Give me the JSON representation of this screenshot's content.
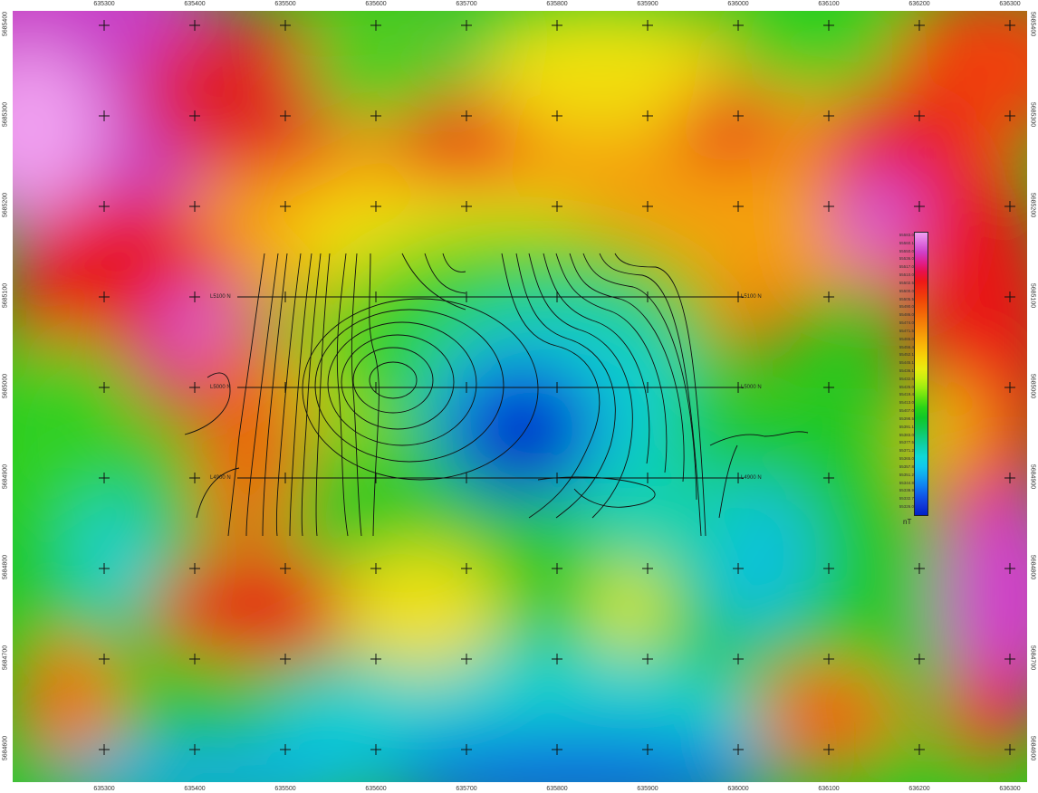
{
  "map": {
    "x_ticks": [
      "635300",
      "635400",
      "635500",
      "635600",
      "635700",
      "635800",
      "635900",
      "636000",
      "636100",
      "636200",
      "636300"
    ],
    "y_ticks": [
      "5685400",
      "5685300",
      "5685200",
      "5685100",
      "5685000",
      "5684900",
      "5684800",
      "5684700",
      "5684600"
    ],
    "survey_lines": [
      {
        "left_label": "L5100 N",
        "right_label": "L5100 N"
      },
      {
        "left_label": "L5000 N",
        "right_label": "L5000 N"
      },
      {
        "left_label": "L4900 N",
        "right_label": "L4900 N"
      }
    ],
    "legend": {
      "unit": "nT",
      "values": [
        "55583.0",
        "55560.1",
        "55550.0",
        "55536.0",
        "55517.0",
        "55510.0",
        "55502.5",
        "55500.0",
        "55505.5",
        "55490.0",
        "55486.0",
        "55474.0",
        "55471.5",
        "55465.0",
        "55456.4",
        "55452.1",
        "55445.1",
        "55436.1",
        "55432.6",
        "55425.0",
        "55419.4",
        "55413.0",
        "55407.0",
        "55398.5",
        "55391.1",
        "55383.0",
        "55377.5",
        "55371.2",
        "55365.0",
        "55357.8",
        "55351.2",
        "55344.8",
        "55338.9",
        "55332.7",
        "55326.0"
      ],
      "colors": [
        "#f0a0f0",
        "#e070e0",
        "#d040c8",
        "#e02090",
        "#e8104c",
        "#ef1818",
        "#f03010",
        "#f04808",
        "#f26008",
        "#f47808",
        "#f69008",
        "#f8a808",
        "#f8c008",
        "#f4d808",
        "#e8ec10",
        "#c8f010",
        "#98ec10",
        "#60e010",
        "#28d418",
        "#10c828",
        "#10c850",
        "#10cc80",
        "#10d0b0",
        "#10d8d8",
        "#10c8ec",
        "#10a8f0",
        "#1080f0",
        "#1058e8",
        "#1038d8",
        "#0020c8"
      ]
    }
  }
}
